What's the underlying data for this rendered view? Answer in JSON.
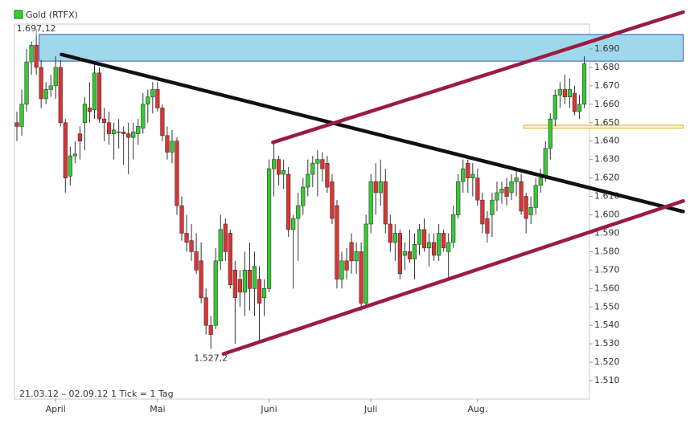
{
  "chart_data": {
    "type": "candlestick",
    "title": "Gold (RTFX)",
    "footer": "21.03.12 – 02.09.12   1 Tick = 1 Tag",
    "high_label": "1.697,12",
    "low_label": "1.527,2",
    "up_color": "#33cc33",
    "down_color": "#dd3333",
    "ylim": [
      1500,
      1703.5
    ],
    "yticks": [
      {
        "value": 1510,
        "label": "1.510"
      },
      {
        "value": 1520,
        "label": "1.520"
      },
      {
        "value": 1530,
        "label": "1.530"
      },
      {
        "value": 1540,
        "label": "1.540"
      },
      {
        "value": 1550,
        "label": "1.550"
      },
      {
        "value": 1560,
        "label": "1.560"
      },
      {
        "value": 1570,
        "label": "1.570"
      },
      {
        "value": 1580,
        "label": "1.580"
      },
      {
        "value": 1590,
        "label": "1.590"
      },
      {
        "value": 1600,
        "label": "1.600"
      },
      {
        "value": 1610,
        "label": "1.610"
      },
      {
        "value": 1620,
        "label": "1.620"
      },
      {
        "value": 1630,
        "label": "1.630"
      },
      {
        "value": 1640,
        "label": "1.640"
      },
      {
        "value": 1650,
        "label": "1.650"
      },
      {
        "value": 1660,
        "label": "1.660"
      },
      {
        "value": 1670,
        "label": "1.670"
      },
      {
        "value": 1680,
        "label": "1.680"
      },
      {
        "value": 1690,
        "label": "1.690"
      }
    ],
    "categories": [
      null,
      null,
      null,
      null,
      null,
      null,
      null,
      null,
      "April",
      null,
      null,
      null,
      null,
      null,
      null,
      null,
      null,
      null,
      null,
      null,
      null,
      null,
      null,
      null,
      null,
      null,
      null,
      null,
      null,
      "Mai",
      null,
      null,
      null,
      null,
      null,
      null,
      null,
      null,
      null,
      null,
      null,
      null,
      null,
      null,
      null,
      null,
      null,
      null,
      null,
      null,
      null,
      null,
      "Juni",
      null,
      null,
      null,
      null,
      null,
      null,
      null,
      null,
      null,
      null,
      null,
      null,
      null,
      null,
      null,
      null,
      null,
      null,
      null,
      null,
      "Juli",
      null,
      null,
      null,
      null,
      null,
      null,
      null,
      null,
      null,
      null,
      null,
      null,
      null,
      null,
      null,
      null,
      null,
      null,
      null,
      null,
      null,
      "Aug.",
      null,
      null,
      null,
      null,
      null,
      null,
      null,
      null,
      null,
      null,
      null,
      null,
      null,
      null,
      null,
      null,
      null,
      null,
      null,
      null,
      null,
      null
    ],
    "open": [
      1650,
      1648,
      1660,
      1683,
      1692,
      1680,
      1663,
      1668,
      1670,
      1680,
      1650,
      1621,
      1632,
      1644,
      1650,
      1658,
      1657,
      1677,
      1652,
      1650,
      1644,
      1645,
      1645,
      1644,
      1642,
      1644,
      1647,
      1660,
      1664,
      1668,
      1658,
      1643,
      1634,
      1640,
      1605,
      1590,
      1586,
      1580,
      1575,
      1555,
      1540,
      1540,
      1575,
      1595,
      1590,
      1570,
      1565,
      1558,
      1570,
      1560,
      1565,
      1555,
      1560,
      1625,
      1630,
      1622,
      1622,
      1592,
      1598,
      1605,
      1615,
      1622,
      1628,
      1630,
      1628,
      1618,
      1605,
      1565,
      1575,
      1585,
      1575,
      1580,
      1552,
      1595,
      1618,
      1612,
      1618,
      1595,
      1585,
      1590,
      1578,
      1580,
      1576,
      1584,
      1592,
      1582,
      1585,
      1578,
      1590,
      1580,
      1585,
      1600,
      1618,
      1628,
      1620,
      1620,
      1608,
      1598,
      1600,
      1608,
      1612,
      1615,
      1612,
      1618,
      1618,
      1610,
      1600,
      1604,
      1616,
      1620,
      1636,
      1652,
      1665,
      1668,
      1664,
      1666,
      1656,
      1660
    ],
    "high": [
      1656,
      1668,
      1690,
      1694,
      1697.12,
      1684,
      1672,
      1676,
      1686,
      1684,
      1652,
      1637,
      1640,
      1648,
      1664,
      1672,
      1682,
      1680,
      1658,
      1656,
      1650,
      1652,
      1648,
      1650,
      1650,
      1652,
      1666,
      1668,
      1672,
      1672,
      1660,
      1648,
      1646,
      1642,
      1610,
      1600,
      1595,
      1590,
      1585,
      1560,
      1545,
      1582,
      1600,
      1598,
      1592,
      1575,
      1570,
      1580,
      1585,
      1580,
      1572,
      1565,
      1630,
      1640,
      1632,
      1630,
      1626,
      1600,
      1612,
      1620,
      1630,
      1632,
      1635,
      1634,
      1632,
      1622,
      1608,
      1580,
      1582,
      1590,
      1585,
      1585,
      1600,
      1622,
      1628,
      1630,
      1625,
      1600,
      1595,
      1592,
      1585,
      1592,
      1590,
      1595,
      1598,
      1590,
      1590,
      1595,
      1592,
      1590,
      1605,
      1622,
      1630,
      1630,
      1628,
      1625,
      1612,
      1602,
      1612,
      1618,
      1618,
      1620,
      1622,
      1625,
      1622,
      1612,
      1610,
      1620,
      1625,
      1640,
      1655,
      1668,
      1672,
      1676,
      1674,
      1670,
      1665,
      1686
    ],
    "low": [
      1640,
      1643,
      1656,
      1676,
      1676,
      1658,
      1660,
      1664,
      1663,
      1648,
      1612,
      1616,
      1628,
      1630,
      1635,
      1650,
      1652,
      1650,
      1640,
      1638,
      1630,
      1636,
      1627,
      1622,
      1630,
      1638,
      1644,
      1650,
      1655,
      1656,
      1640,
      1630,
      1628,
      1600,
      1586,
      1580,
      1575,
      1568,
      1552,
      1535,
      1527.2,
      1538,
      1570,
      1575,
      1560,
      1530,
      1550,
      1545,
      1548,
      1545,
      1530,
      1545,
      1558,
      1610,
      1616,
      1614,
      1588,
      1560,
      1575,
      1600,
      1610,
      1615,
      1610,
      1618,
      1612,
      1595,
      1560,
      1560,
      1565,
      1568,
      1568,
      1548,
      1550,
      1590,
      1600,
      1605,
      1590,
      1580,
      1575,
      1565,
      1570,
      1574,
      1565,
      1578,
      1580,
      1572,
      1575,
      1575,
      1580,
      1565,
      1582,
      1598,
      1612,
      1612,
      1610,
      1605,
      1590,
      1585,
      1588,
      1602,
      1606,
      1605,
      1608,
      1610,
      1600,
      1590,
      1595,
      1600,
      1612,
      1618,
      1630,
      1648,
      1658,
      1660,
      1658,
      1654,
      1652,
      1658
    ],
    "close": [
      1648,
      1660,
      1683,
      1692,
      1680,
      1663,
      1668,
      1670,
      1680,
      1650,
      1620,
      1632,
      1633,
      1640,
      1660,
      1656,
      1677,
      1652,
      1650,
      1644,
      1646,
      1645,
      1644,
      1642,
      1645,
      1648,
      1660,
      1664,
      1668,
      1658,
      1643,
      1634,
      1640,
      1605,
      1590,
      1585,
      1580,
      1570,
      1555,
      1540,
      1535,
      1575,
      1592,
      1580,
      1562,
      1555,
      1558,
      1570,
      1560,
      1572,
      1552,
      1560,
      1625,
      1630,
      1622,
      1624,
      1592,
      1598,
      1605,
      1615,
      1622,
      1628,
      1630,
      1625,
      1615,
      1598,
      1565,
      1575,
      1570,
      1575,
      1580,
      1552,
      1595,
      1618,
      1612,
      1618,
      1595,
      1585,
      1590,
      1568,
      1580,
      1576,
      1584,
      1592,
      1582,
      1585,
      1578,
      1590,
      1582,
      1585,
      1600,
      1618,
      1625,
      1620,
      1622,
      1608,
      1595,
      1590,
      1608,
      1612,
      1614,
      1610,
      1618,
      1620,
      1602,
      1598,
      1604,
      1616,
      1620,
      1636,
      1652,
      1665,
      1668,
      1664,
      1668,
      1656,
      1660,
      1682
    ],
    "trendlines": [
      {
        "color": "#111111",
        "x": [
          9.2,
          137.4
        ],
        "y": [
          1687,
          1601.8
        ]
      },
      {
        "color": "#9b1b45",
        "x": [
          52.8,
          137.4
        ],
        "y": [
          1639.3,
          1710
        ]
      },
      {
        "color": "#9b1b45",
        "x": [
          42.6,
          137.4
        ],
        "y": [
          1524.5,
          1607.5
        ]
      }
    ],
    "zones": [
      {
        "fill": "#9fd8ea",
        "stroke": "#3a56c8",
        "x": [
          4.6,
          137.4
        ],
        "y": [
          1683.4,
          1697.9
        ]
      },
      {
        "fill": "#fff6d0",
        "stroke": "#e0b020",
        "x": [
          104.5,
          137.4
        ],
        "y": [
          1647,
          1648.6
        ]
      }
    ]
  }
}
